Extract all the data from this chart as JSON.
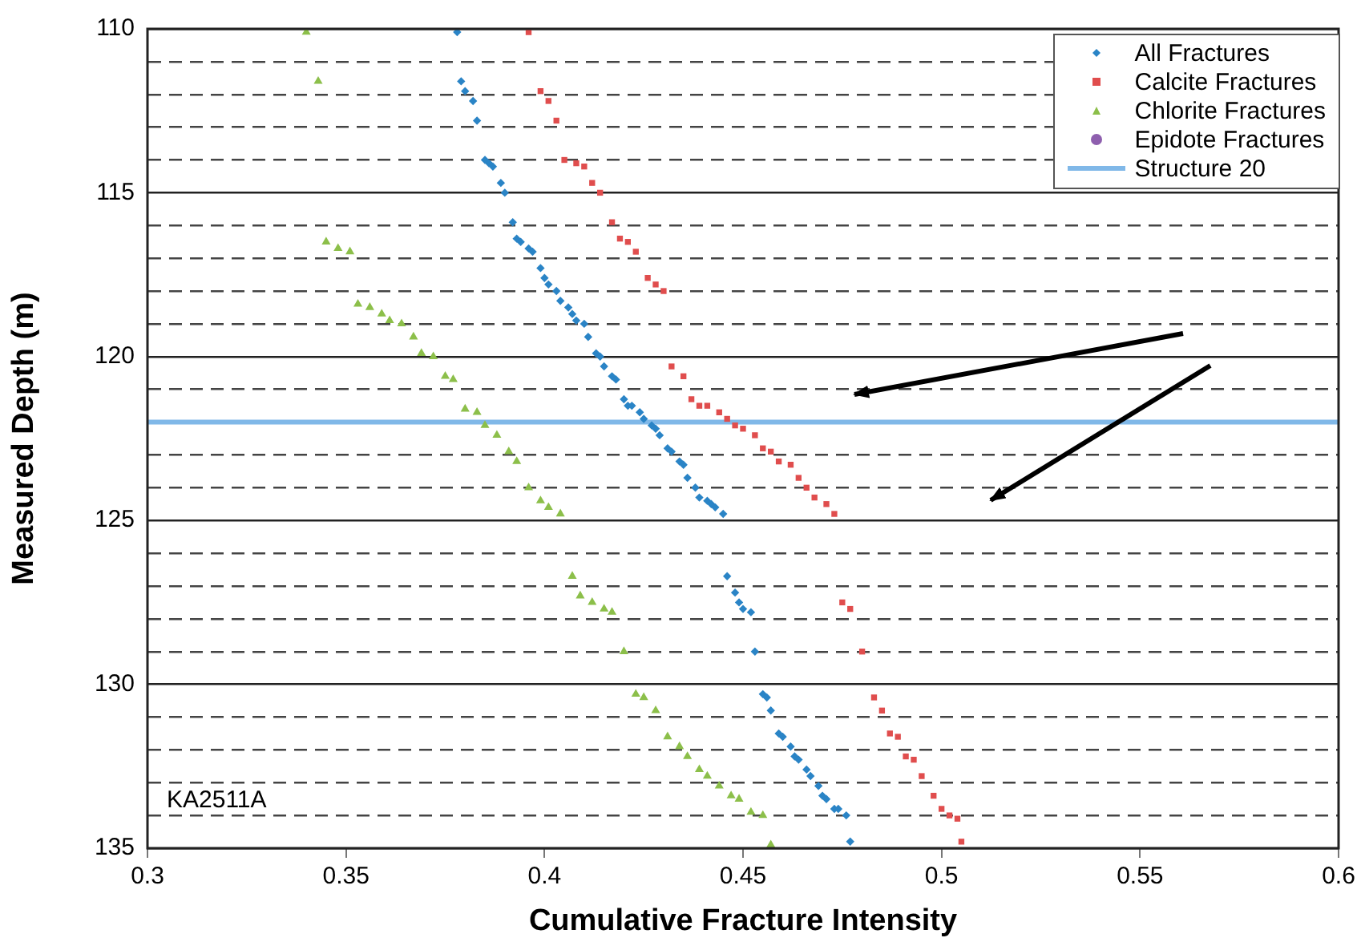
{
  "chart_data": {
    "type": "scatter",
    "xlabel": "Cumulative Fracture Intensity",
    "ylabel": "Measured Depth (m)",
    "xlim": [
      0.3,
      0.6
    ],
    "xticks": [
      0.3,
      0.35,
      0.4,
      0.45,
      0.5,
      0.55,
      0.6
    ],
    "ylim": [
      135,
      110
    ],
    "yticks": [
      110,
      {
        "value": 111,
        "label": null
      },
      {
        "value": 112,
        "label": null
      },
      {
        "value": 113,
        "label": null
      },
      {
        "value": 114,
        "label": null
      },
      115,
      {
        "value": 116,
        "label": null
      },
      {
        "value": 117,
        "label": null
      },
      {
        "value": 118,
        "label": null
      },
      {
        "value": 119,
        "label": null
      },
      120,
      {
        "value": 121,
        "label": null
      },
      {
        "value": 122,
        "label": null
      },
      {
        "value": 123,
        "label": null
      },
      {
        "value": 124,
        "label": null
      },
      125,
      {
        "value": 126,
        "label": null
      },
      {
        "value": 127,
        "label": null
      },
      {
        "value": 128,
        "label": null
      },
      {
        "value": 129,
        "label": null
      },
      130,
      {
        "value": 131,
        "label": null
      },
      {
        "value": 132,
        "label": null
      },
      {
        "value": 133,
        "label": null
      },
      {
        "value": 134,
        "label": null
      },
      135
    ],
    "grid": "y",
    "legend": "top right",
    "series": [
      {
        "name": "All Fractures",
        "color": "#2a84c6",
        "marker": "diamond",
        "x": [
          0.378,
          0.379,
          0.38,
          0.382,
          0.383,
          0.385,
          0.386,
          0.387,
          0.389,
          0.39,
          0.392,
          0.393,
          0.394,
          0.396,
          0.397,
          0.399,
          0.4,
          0.401,
          0.403,
          0.404,
          0.406,
          0.407,
          0.408,
          0.41,
          0.411,
          0.413,
          0.414,
          0.415,
          0.417,
          0.418,
          0.42,
          0.421,
          0.422,
          0.424,
          0.425,
          0.427,
          0.428,
          0.429,
          0.431,
          0.432,
          0.434,
          0.435,
          0.436,
          0.438,
          0.439,
          0.441,
          0.442,
          0.443,
          0.445,
          0.446,
          0.448,
          0.449,
          0.45,
          0.452,
          0.453,
          0.455,
          0.456,
          0.457,
          0.459,
          0.46,
          0.462,
          0.463,
          0.464,
          0.466,
          0.467,
          0.469,
          0.47,
          0.471,
          0.473,
          0.474,
          0.476,
          0.477
        ],
        "values": [
          110.1,
          111.6,
          111.9,
          112.2,
          112.8,
          114.0,
          114.1,
          114.2,
          114.7,
          115.0,
          115.9,
          116.4,
          116.5,
          116.7,
          116.8,
          117.3,
          117.6,
          117.8,
          118.0,
          118.3,
          118.5,
          118.7,
          118.9,
          119.0,
          119.4,
          119.9,
          120.0,
          120.3,
          120.6,
          120.7,
          121.3,
          121.5,
          121.5,
          121.7,
          121.9,
          122.1,
          122.2,
          122.4,
          122.8,
          122.9,
          123.2,
          123.3,
          123.7,
          124.0,
          124.3,
          124.4,
          124.5,
          124.6,
          124.8,
          126.7,
          127.2,
          127.5,
          127.7,
          127.8,
          129.0,
          130.3,
          130.4,
          130.8,
          131.5,
          131.6,
          131.9,
          132.2,
          132.3,
          132.6,
          132.8,
          133.1,
          133.4,
          133.5,
          133.8,
          133.8,
          134.0,
          134.8
        ]
      },
      {
        "name": "Calcite Fractures",
        "color": "#e04d4d",
        "marker": "square",
        "x": [
          0.396,
          0.399,
          0.401,
          0.403,
          0.405,
          0.408,
          0.41,
          0.412,
          0.414,
          0.417,
          0.419,
          0.421,
          0.423,
          0.426,
          0.428,
          0.43,
          0.432,
          0.435,
          0.437,
          0.439,
          0.441,
          0.444,
          0.446,
          0.448,
          0.45,
          0.453,
          0.455,
          0.457,
          0.459,
          0.462,
          0.464,
          0.466,
          0.468,
          0.471,
          0.473,
          0.475,
          0.477,
          0.48,
          0.483,
          0.485,
          0.487,
          0.489,
          0.491,
          0.493,
          0.495,
          0.498,
          0.5,
          0.502,
          0.504,
          0.505
        ],
        "values": [
          110.1,
          111.9,
          112.2,
          112.8,
          114.0,
          114.1,
          114.2,
          114.7,
          115.0,
          115.9,
          116.4,
          116.5,
          116.8,
          117.6,
          117.8,
          118.0,
          120.3,
          120.6,
          121.3,
          121.5,
          121.5,
          121.7,
          121.9,
          122.1,
          122.2,
          122.4,
          122.8,
          122.9,
          123.2,
          123.3,
          123.7,
          124.0,
          124.3,
          124.5,
          124.8,
          127.5,
          127.7,
          129.0,
          130.4,
          130.8,
          131.5,
          131.6,
          132.2,
          132.3,
          132.8,
          133.4,
          133.8,
          134.0,
          134.1,
          134.8
        ]
      },
      {
        "name": "Chlorite Fractures",
        "color": "#8cbf4a",
        "marker": "triangle",
        "x": [
          0.34,
          0.343,
          0.345,
          0.348,
          0.351,
          0.353,
          0.356,
          0.359,
          0.361,
          0.364,
          0.367,
          0.369,
          0.372,
          0.375,
          0.377,
          0.38,
          0.383,
          0.385,
          0.388,
          0.391,
          0.393,
          0.396,
          0.399,
          0.401,
          0.404,
          0.407,
          0.409,
          0.412,
          0.415,
          0.417,
          0.42,
          0.423,
          0.425,
          0.428,
          0.431,
          0.434,
          0.436,
          0.439,
          0.441,
          0.444,
          0.447,
          0.449,
          0.452,
          0.455,
          0.457
        ],
        "values": [
          110.1,
          111.6,
          116.5,
          116.7,
          116.8,
          118.4,
          118.5,
          118.7,
          118.9,
          119.0,
          119.4,
          119.9,
          120.0,
          120.6,
          120.7,
          121.6,
          121.7,
          122.1,
          122.4,
          122.9,
          123.2,
          124.0,
          124.4,
          124.6,
          124.8,
          126.7,
          127.3,
          127.5,
          127.7,
          127.8,
          129.0,
          130.3,
          130.4,
          130.8,
          131.6,
          131.9,
          132.2,
          132.6,
          132.8,
          133.1,
          133.4,
          133.5,
          133.9,
          134.0,
          134.9
        ]
      },
      {
        "name": "Epidote Fractures",
        "color": "#8e5fae",
        "marker": "circle"
      }
    ],
    "ref_lines": [
      {
        "axis": "y",
        "value": 122,
        "label": "Structure 20",
        "color": "#80b8e8"
      }
    ],
    "annotations": [
      "KA2511A"
    ]
  }
}
